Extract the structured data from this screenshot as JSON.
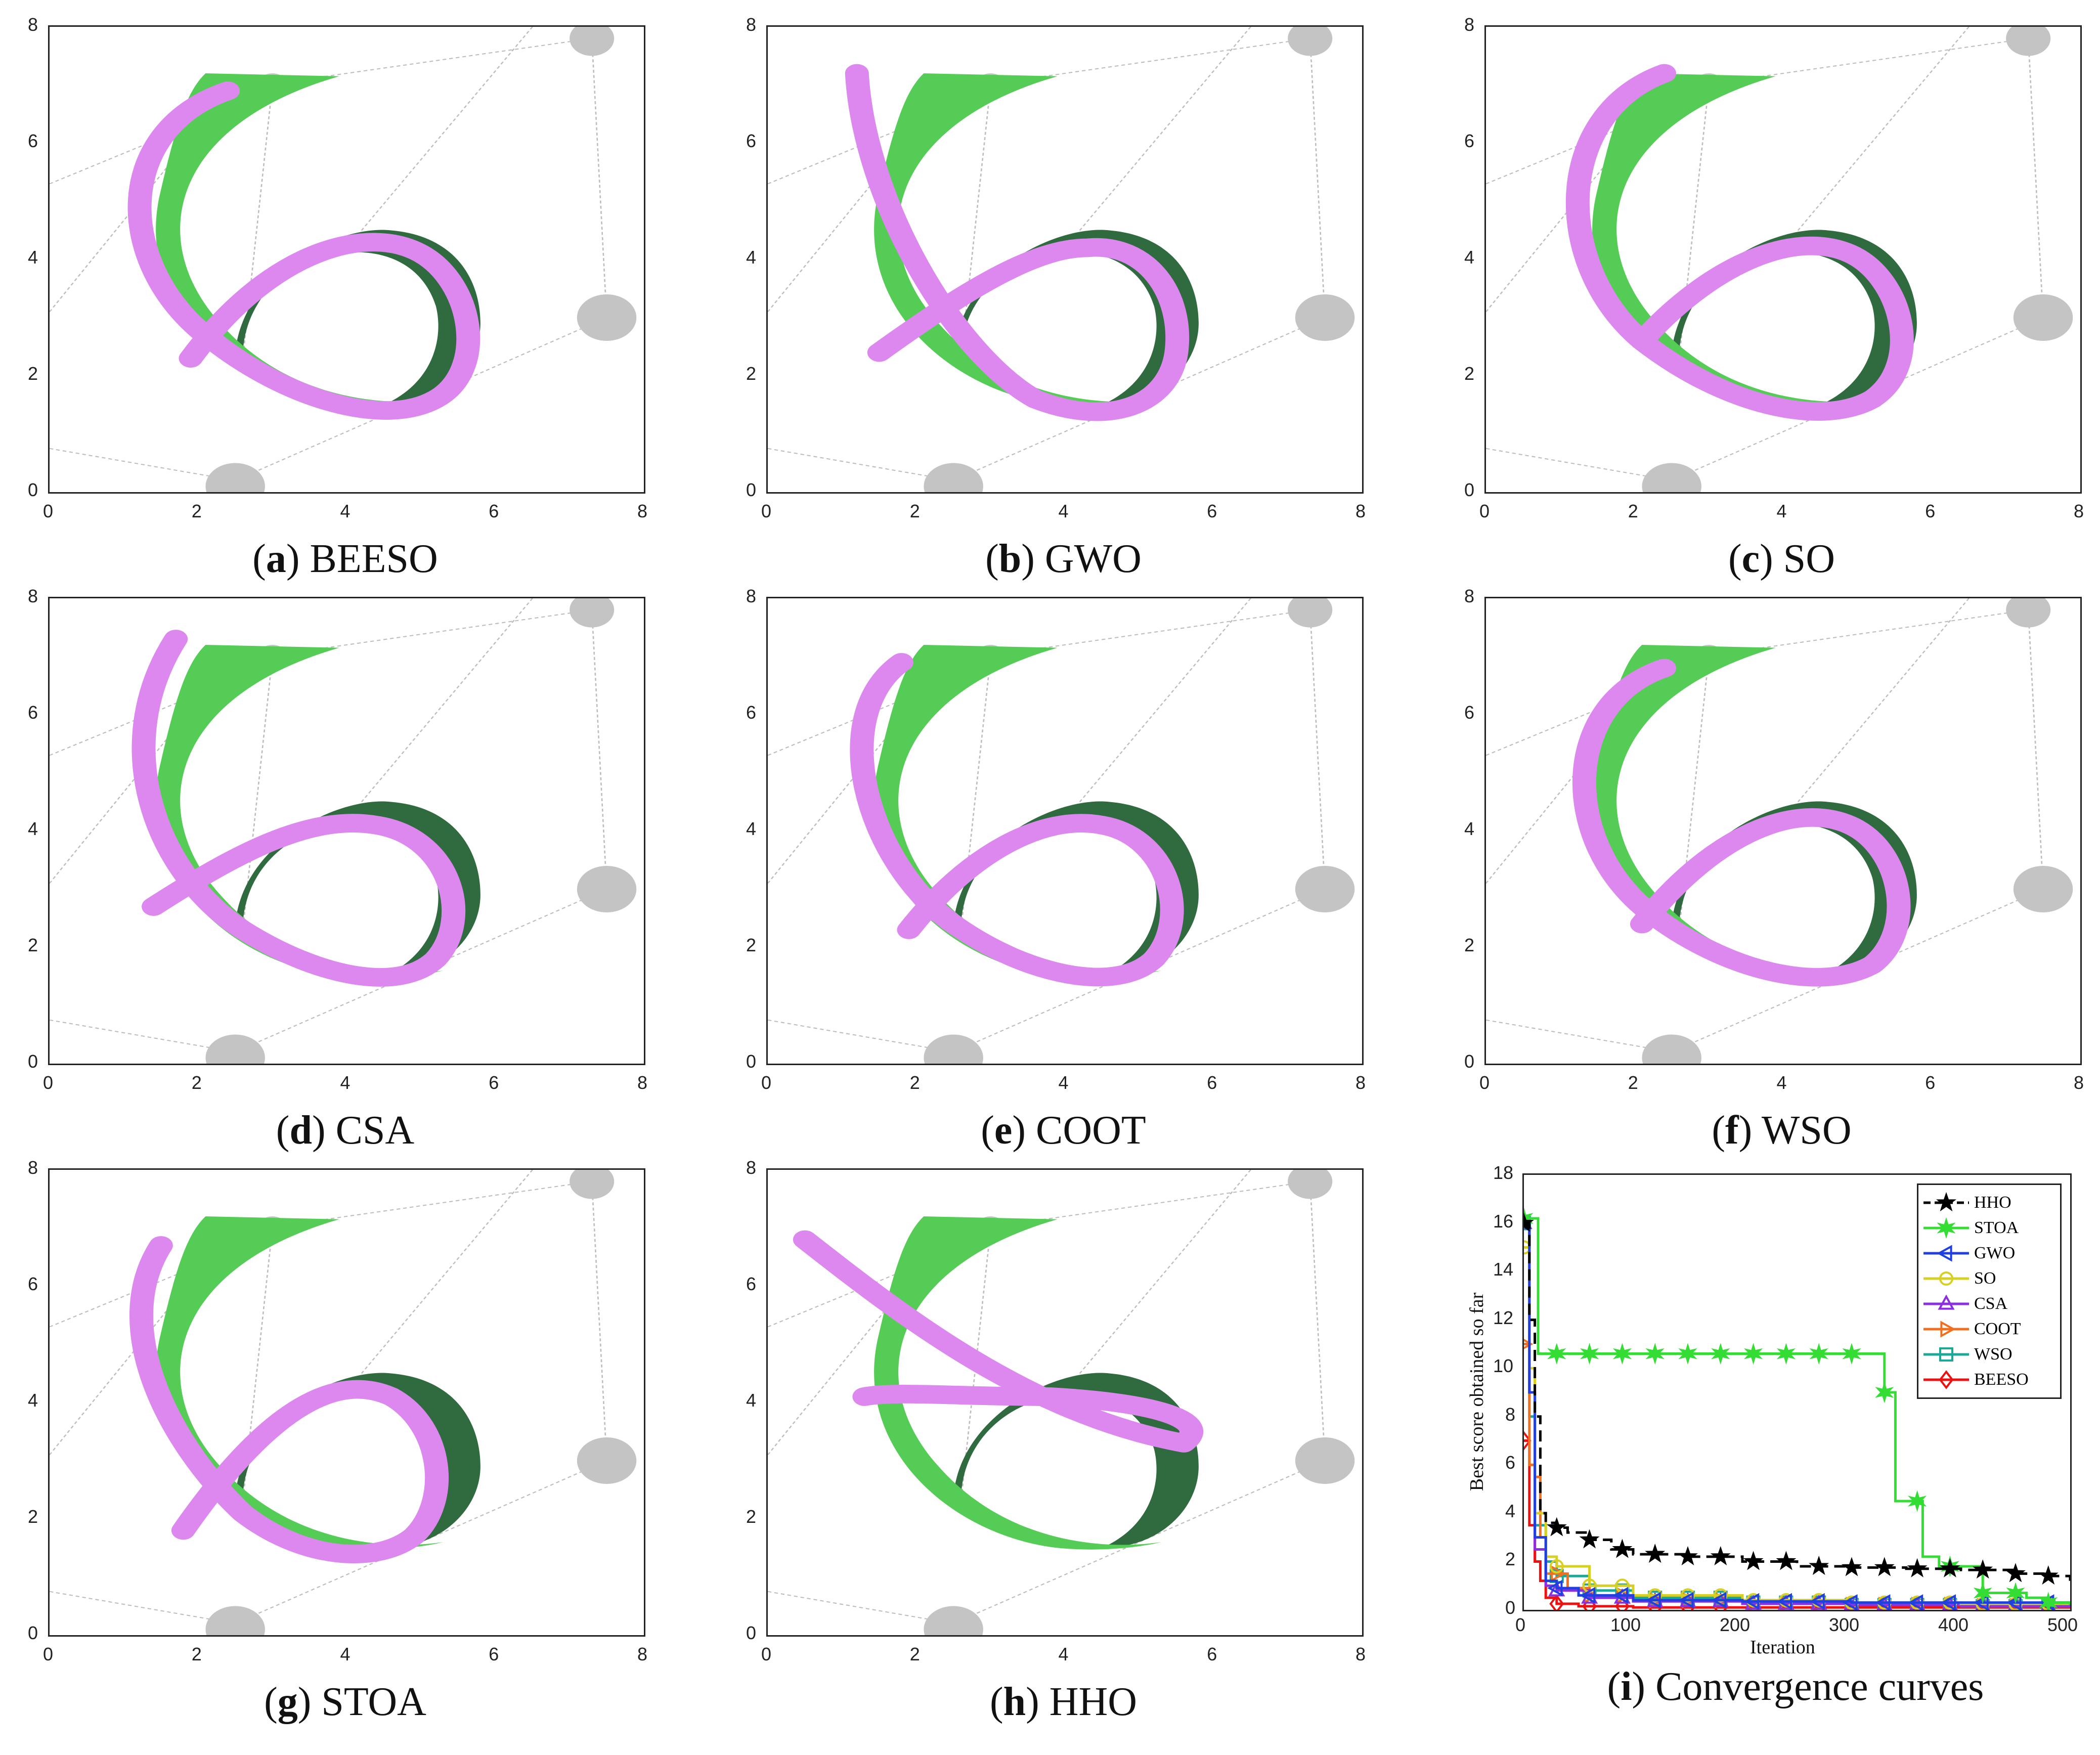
{
  "panels": [
    {
      "id": "a",
      "name": "BEESO",
      "variant": 0
    },
    {
      "id": "b",
      "name": "GWO",
      "variant": 1
    },
    {
      "id": "c",
      "name": "SO",
      "variant": 2
    },
    {
      "id": "d",
      "name": "CSA",
      "variant": 3
    },
    {
      "id": "e",
      "name": "COOT",
      "variant": 4
    },
    {
      "id": "f",
      "name": "WSO",
      "variant": 5
    },
    {
      "id": "g",
      "name": "STOA",
      "variant": 6
    },
    {
      "id": "h",
      "name": "HHO",
      "variant": 7
    }
  ],
  "ticks": [
    "0",
    "2",
    "4",
    "6",
    "8"
  ],
  "convergence": {
    "caption_id": "i",
    "caption_text": "Convergence curves",
    "xlabel": "Iteration",
    "ylabel": "Best score obtained so far",
    "x_ticks": [
      "0",
      "100",
      "200",
      "300",
      "400",
      "500"
    ],
    "y_ticks": [
      "0",
      "2",
      "4",
      "6",
      "8",
      "10",
      "12",
      "14",
      "16",
      "18"
    ]
  },
  "colors": {
    "light_green": "#55cc55",
    "dark_green": "#2f6b3f",
    "pink": "#dd88ee",
    "gray": "#c4c4c4"
  },
  "chart_data": {
    "type": "line",
    "title": "Convergence curves",
    "xlabel": "Iteration",
    "ylabel": "Best score obtained so far",
    "xlim": [
      0,
      500
    ],
    "ylim": [
      0,
      18
    ],
    "series": [
      {
        "name": "HHO",
        "color": "#000000",
        "marker": "star",
        "dashed": true,
        "x": [
          0,
          5,
          10,
          15,
          20,
          30,
          40,
          60,
          80,
          100,
          150,
          200,
          250,
          300,
          350,
          400,
          450,
          480,
          500
        ],
        "y": [
          16,
          12,
          8,
          4,
          3.6,
          3.4,
          3.2,
          2.9,
          2.5,
          2.3,
          2.2,
          2.0,
          1.8,
          1.75,
          1.7,
          1.65,
          1.5,
          1.4,
          1.2
        ]
      },
      {
        "name": "STOA",
        "color": "#33dd33",
        "marker": "hexstar",
        "x": [
          0,
          12,
          13,
          320,
          330,
          340,
          360,
          365,
          380,
          420,
          460,
          480,
          500
        ],
        "y": [
          16.2,
          16.2,
          10.6,
          10.6,
          9,
          4.5,
          4.5,
          2.2,
          1.8,
          0.7,
          0.5,
          0.3,
          0.2
        ]
      },
      {
        "name": "GWO",
        "color": "#1f3fe0",
        "marker": "triangle-left",
        "x": [
          0,
          5,
          10,
          20,
          30,
          50,
          100,
          200,
          300,
          400,
          500
        ],
        "y": [
          16,
          9,
          3,
          1.2,
          0.9,
          0.6,
          0.4,
          0.35,
          0.3,
          0.3,
          0.3
        ]
      },
      {
        "name": "SO",
        "color": "#d8d020",
        "marker": "circle",
        "x": [
          0,
          5,
          10,
          20,
          30,
          60,
          100,
          200,
          300,
          400,
          500
        ],
        "y": [
          15,
          10,
          4,
          2.2,
          1.8,
          1.0,
          0.6,
          0.4,
          0.3,
          0.25,
          0.2
        ]
      },
      {
        "name": "CSA",
        "color": "#8a30e0",
        "marker": "triangle-up",
        "x": [
          0,
          5,
          10,
          20,
          30,
          60,
          100,
          200,
          300,
          400,
          500
        ],
        "y": [
          16,
          9,
          2.5,
          1.0,
          0.8,
          0.5,
          0.35,
          0.25,
          0.2,
          0.15,
          0.15
        ]
      },
      {
        "name": "COOT",
        "color": "#f07020",
        "marker": "triangle-right",
        "x": [
          0,
          5,
          10,
          15,
          20,
          40,
          60,
          100,
          200,
          300,
          400,
          500
        ],
        "y": [
          11,
          6,
          5.5,
          3,
          1.5,
          0.9,
          0.6,
          0.4,
          0.25,
          0.2,
          0.15,
          0.15
        ]
      },
      {
        "name": "WSO",
        "color": "#1aa898",
        "marker": "square",
        "x": [
          0,
          5,
          10,
          20,
          30,
          60,
          100,
          200,
          300,
          400,
          500
        ],
        "y": [
          16,
          8,
          3.5,
          2.0,
          1.4,
          0.8,
          0.5,
          0.3,
          0.2,
          0.15,
          0.1
        ]
      },
      {
        "name": "BEESO",
        "color": "#ee1111",
        "marker": "diamond",
        "x": [
          0,
          5,
          10,
          15,
          20,
          30,
          50,
          100,
          200,
          300,
          400,
          500
        ],
        "y": [
          7,
          3.5,
          2.0,
          1.2,
          0.5,
          0.25,
          0.15,
          0.1,
          0.1,
          0.1,
          0.1,
          0.1
        ]
      }
    ]
  }
}
